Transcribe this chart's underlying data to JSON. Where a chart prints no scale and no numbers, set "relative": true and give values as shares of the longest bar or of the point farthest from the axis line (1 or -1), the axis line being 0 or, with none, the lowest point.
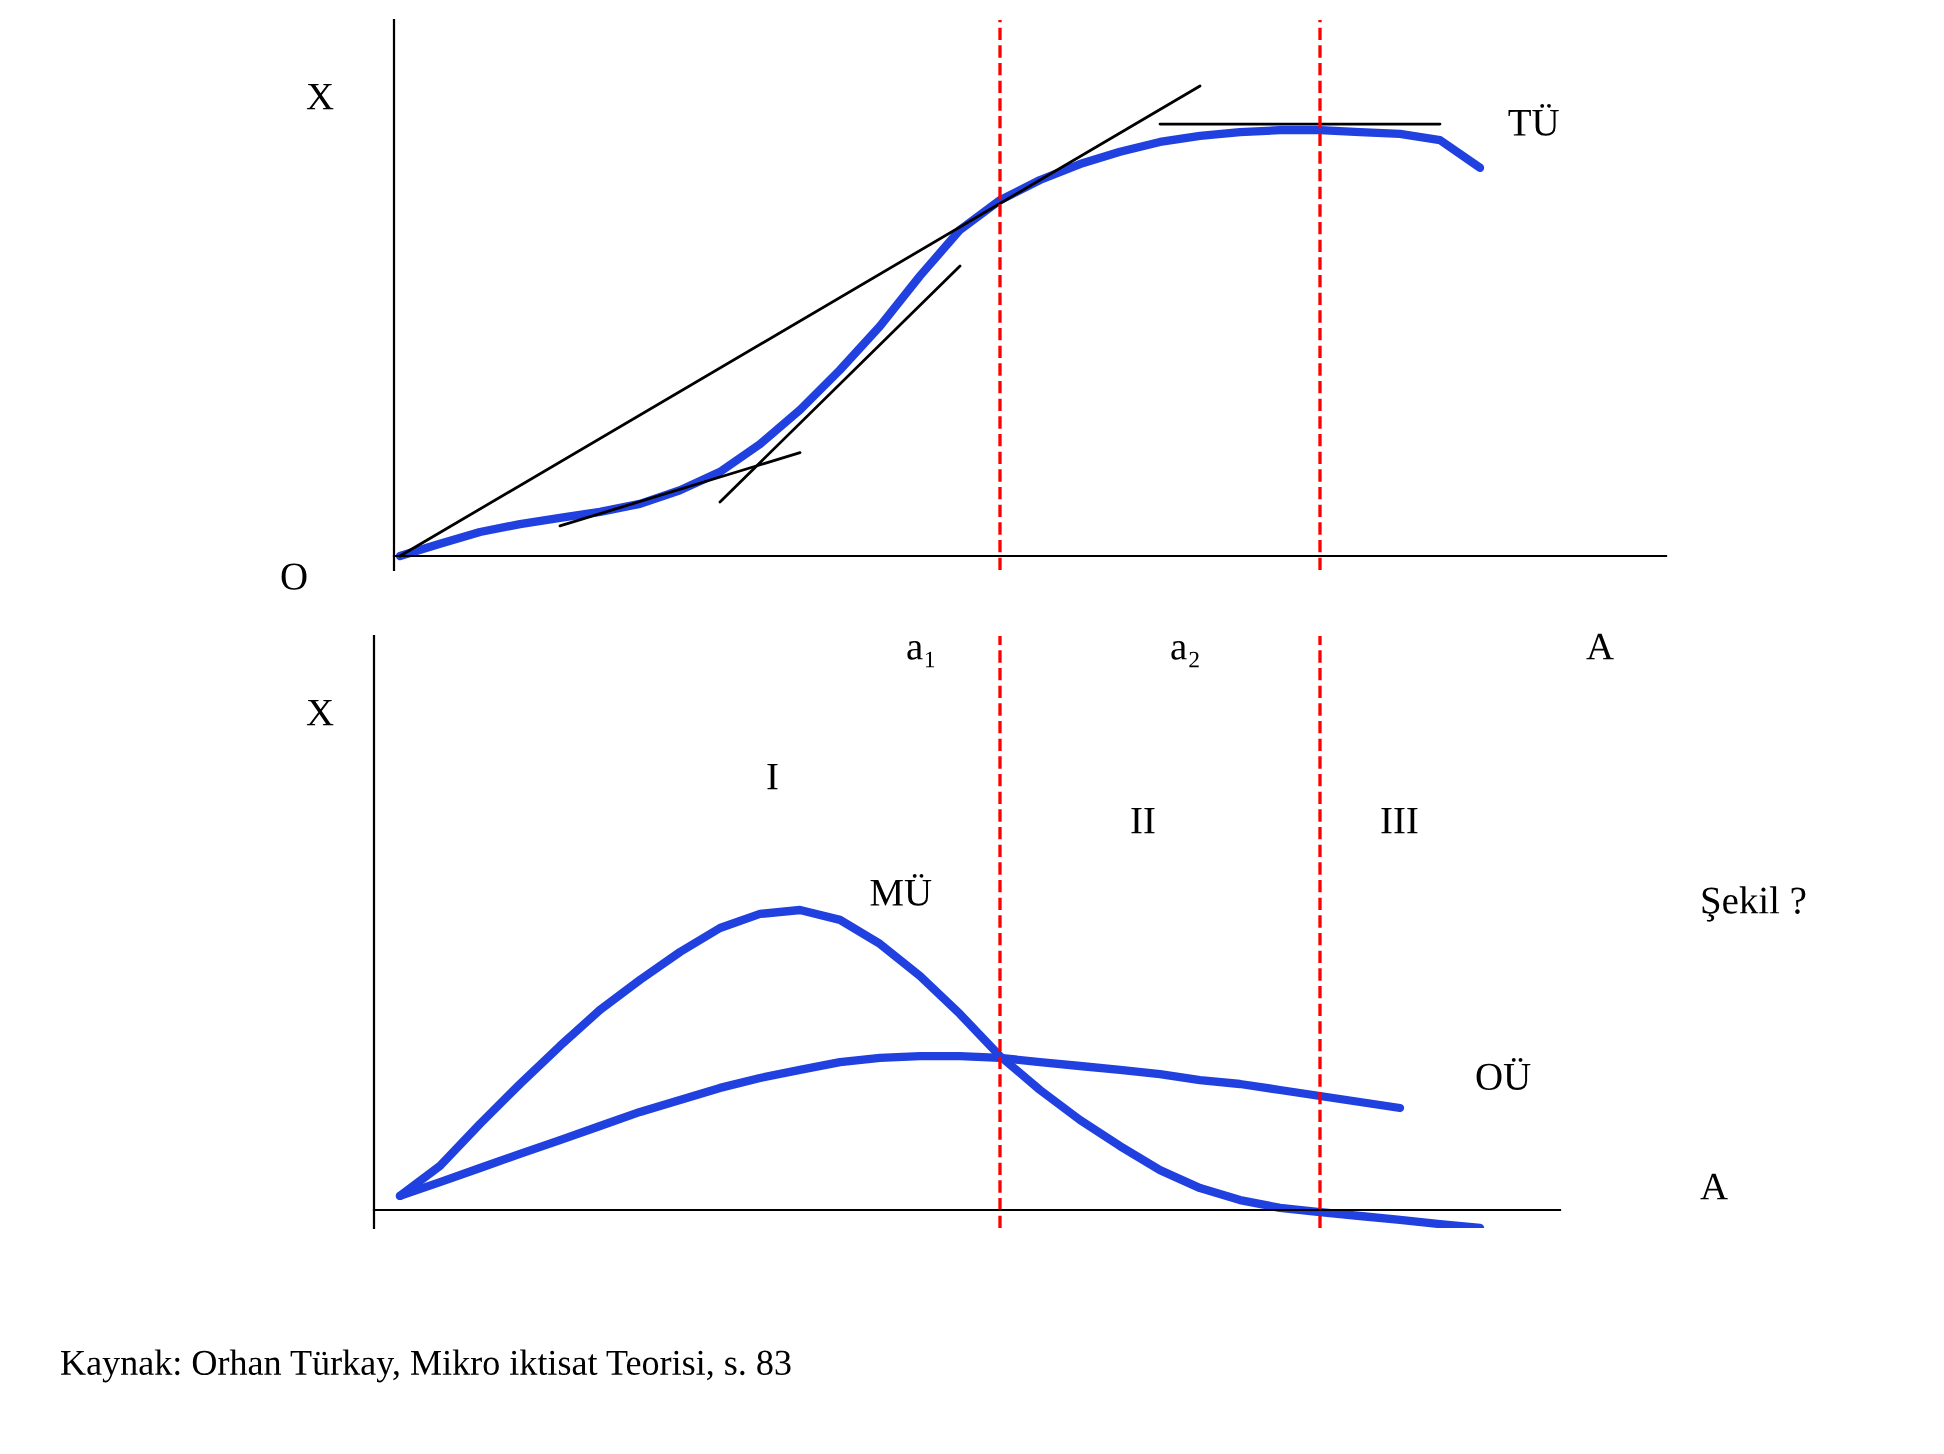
{
  "chart_data": [
    {
      "type": "line",
      "relative": true,
      "ylabel": "X",
      "xlabel": "A",
      "categories": [
        null,
        null,
        null,
        null,
        null,
        null,
        null,
        null,
        null,
        null,
        null,
        null,
        null,
        null,
        null,
        null,
        null,
        null,
        null,
        null,
        null,
        null,
        null,
        null,
        null,
        null,
        null,
        null,
        null,
        null,
        null,
        null
      ],
      "series": [
        {
          "name": "TÜ",
          "color": "#2040e0",
          "values": [
            0,
            0.026,
            0.051,
            0.068,
            0.081,
            0.094,
            0.111,
            0.14,
            0.179,
            0.238,
            0.311,
            0.396,
            0.489,
            0.596,
            0.694,
            0.757,
            0.8,
            0.834,
            0.86,
            0.881,
            0.894,
            0.902,
            0.906,
            0.906,
            0.902,
            0.898,
            0.885,
            0.826,
            null,
            null,
            null,
            null
          ]
        },
        {
          "color": "#000000",
          "values": [
            0,
            null,
            null,
            null,
            null,
            null,
            null,
            null,
            null,
            null,
            null,
            null,
            null,
            null,
            null,
            null,
            null,
            null,
            null,
            null,
            1.0,
            null,
            null,
            null,
            null,
            null,
            null,
            null,
            null,
            null,
            null,
            null
          ]
        },
        {
          "color": "#000000",
          "values": [
            null,
            null,
            null,
            null,
            0.064,
            null,
            null,
            null,
            null,
            null,
            0.22,
            null,
            null,
            null,
            null,
            null,
            null,
            null,
            null,
            null,
            null,
            null,
            null,
            null,
            null,
            null,
            null,
            null,
            null,
            null,
            null,
            null
          ]
        },
        {
          "color": "#000000",
          "values": [
            null,
            null,
            null,
            null,
            null,
            null,
            null,
            null,
            0.115,
            null,
            null,
            null,
            null,
            null,
            0.617,
            null,
            null,
            null,
            null,
            null,
            null,
            null,
            null,
            null,
            null,
            null,
            null,
            null,
            null,
            null,
            null,
            null
          ]
        },
        {
          "color": "#000000",
          "values": [
            null,
            null,
            null,
            null,
            null,
            null,
            null,
            null,
            null,
            null,
            null,
            null,
            null,
            null,
            null,
            null,
            null,
            null,
            null,
            0.919,
            null,
            null,
            null,
            null,
            null,
            null,
            0.919,
            null,
            null,
            null,
            null,
            null
          ]
        }
      ],
      "annotations": [
        "O",
        "a₁",
        "a₂"
      ],
      "grid": false,
      "legend": false
    },
    {
      "type": "line",
      "relative": true,
      "ylabel": "X",
      "xlabel": "A",
      "categories": [
        null,
        null,
        null,
        null,
        null,
        null,
        null,
        null,
        null,
        null,
        null,
        null,
        null,
        null,
        null,
        null,
        null,
        null,
        null,
        null,
        null,
        null,
        null,
        null,
        null,
        null,
        null,
        null,
        null,
        null
      ],
      "series": [
        {
          "name": "MÜ",
          "color": "#2040e0",
          "values": [
            0.047,
            0.147,
            0.287,
            0.42,
            0.547,
            0.667,
            0.767,
            0.86,
            0.94,
            0.987,
            1.0,
            0.967,
            0.887,
            0.78,
            0.653,
            0.513,
            0.4,
            0.3,
            0.213,
            0.133,
            0.073,
            0.033,
            0.007,
            -0.007,
            -0.02,
            -0.033,
            -0.047,
            -0.06,
            null,
            null
          ]
        },
        {
          "name": "OÜ",
          "color": "#2040e0",
          "values": [
            0.047,
            0.093,
            0.14,
            0.187,
            0.233,
            0.28,
            0.327,
            0.367,
            0.407,
            0.44,
            0.467,
            0.493,
            0.507,
            0.513,
            0.513,
            0.507,
            0.493,
            0.48,
            0.467,
            0.453,
            0.433,
            0.42,
            0.4,
            0.38,
            0.36,
            0.34,
            null,
            null,
            null,
            null
          ]
        }
      ],
      "annotations": [
        "I",
        "II",
        "III",
        "Şekil ?",
        "Kaynak: Orhan Türkay, Mikro iktisat Teorisi, s. 83"
      ],
      "grid": false,
      "legend": false
    }
  ]
}
